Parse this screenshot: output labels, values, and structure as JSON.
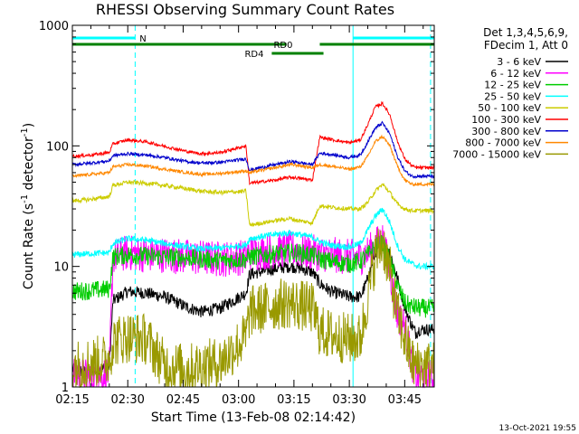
{
  "chart_data": {
    "type": "line",
    "title": "RHESSI Observing Summary Count Rates",
    "xlabel": "Start Time (13-Feb-08 02:14:42)",
    "ylabel_main": "Count Rate (s",
    "ylabel_sup1": "-1",
    "ylabel_mid": " detector",
    "ylabel_sup2": "-1",
    "ylabel_end": ")",
    "yscale": "log",
    "ylim": [
      1,
      1000
    ],
    "xlim_minutes": [
      135,
      233
    ],
    "x_ticks": [
      {
        "t": 135,
        "label": "02:15"
      },
      {
        "t": 150,
        "label": "02:30"
      },
      {
        "t": 165,
        "label": "02:45"
      },
      {
        "t": 180,
        "label": "03:00"
      },
      {
        "t": 195,
        "label": "03:15"
      },
      {
        "t": 210,
        "label": "03:30"
      },
      {
        "t": 225,
        "label": "03:45"
      }
    ],
    "y_ticks": [
      {
        "v": 1,
        "label": "1"
      },
      {
        "v": 10,
        "label": "10"
      },
      {
        "v": 100,
        "label": "100"
      },
      {
        "v": 1000,
        "label": "1000"
      }
    ],
    "legend_header": [
      "Det 1,3,4,5,6,9,",
      "FDecim 1, Att 0"
    ],
    "legend_placement": "right",
    "series": [
      {
        "name": "3 - 6 keV",
        "color": "#000000",
        "x": [
          135,
          140,
          145,
          146,
          150,
          155,
          160,
          166,
          170,
          175,
          182,
          183,
          190,
          194,
          196,
          200,
          202,
          205,
          210,
          213,
          215,
          217,
          219,
          221,
          223,
          225,
          227,
          228,
          229,
          230,
          232
        ],
        "y": [
          1.4,
          1.3,
          1.5,
          5.2,
          6.2,
          6.0,
          5.6,
          4.6,
          4.2,
          4.5,
          6.0,
          8.6,
          9.6,
          10.0,
          9.8,
          9.0,
          7.2,
          6.2,
          5.6,
          5.6,
          7.8,
          13,
          17,
          13,
          8.0,
          4.6,
          3.2,
          2.8,
          3.0,
          3.0,
          3.0
        ]
      },
      {
        "name": "6 - 12 keV",
        "color": "#ff00ff",
        "x": [
          135,
          140,
          145,
          146,
          150,
          155,
          160,
          166,
          170,
          175,
          182,
          183,
          190,
          194,
          196,
          200,
          202,
          205,
          210,
          213,
          215,
          217,
          219,
          221,
          223,
          225,
          227,
          228,
          229,
          230,
          232
        ],
        "y": [
          1.3,
          1.2,
          1.3,
          12,
          13,
          12.5,
          12.5,
          12,
          11.8,
          11.5,
          12,
          13,
          13.5,
          14,
          13.5,
          13,
          12.8,
          12.5,
          12,
          12,
          13,
          15,
          17,
          9,
          4,
          3.2,
          1.6,
          1.2,
          1.2,
          1.2,
          1.2
        ]
      },
      {
        "name": "12 - 25 keV",
        "color": "#00cc00",
        "x": [
          135,
          140,
          145,
          146,
          150,
          155,
          160,
          166,
          170,
          175,
          182,
          183,
          190,
          194,
          196,
          200,
          202,
          205,
          210,
          213,
          215,
          217,
          219,
          221,
          223,
          225,
          227,
          228,
          229,
          230,
          232
        ],
        "y": [
          6.2,
          6.3,
          6.5,
          12,
          12.5,
          12.2,
          12,
          11.8,
          11.5,
          11.2,
          11.5,
          12,
          12.8,
          13,
          13,
          12.5,
          11.5,
          11,
          10.5,
          11,
          12.5,
          14.5,
          15.5,
          11,
          7,
          5,
          4.6,
          4.6,
          4.5,
          4.5,
          4.5
        ]
      },
      {
        "name": "25 - 50 keV",
        "color": "#00ffff",
        "x": [
          135,
          140,
          145,
          146,
          150,
          155,
          160,
          166,
          170,
          175,
          182,
          183,
          190,
          194,
          196,
          200,
          202,
          205,
          210,
          213,
          215,
          217,
          219,
          221,
          223,
          225,
          227,
          228,
          229,
          230,
          232
        ],
        "y": [
          12.5,
          12.8,
          13,
          15.5,
          17,
          16.5,
          15.5,
          14.5,
          14,
          14.2,
          15,
          17,
          18.5,
          19,
          18.5,
          17.5,
          16,
          15,
          14.5,
          15.5,
          20,
          26,
          30,
          23,
          15,
          11.5,
          10.5,
          10.2,
          10,
          10,
          10
        ]
      },
      {
        "name": "50 - 100 keV",
        "color": "#cccc00",
        "x": [
          135,
          140,
          145,
          146,
          150,
          155,
          160,
          166,
          170,
          175,
          182,
          183,
          190,
          194,
          196,
          200,
          202,
          205,
          210,
          213,
          215,
          217,
          219,
          221,
          223,
          225,
          227,
          228,
          229,
          230,
          232
        ],
        "y": [
          35,
          36,
          38,
          47,
          50,
          49,
          47,
          44,
          42,
          41,
          42,
          22,
          24,
          25,
          24,
          23,
          32,
          31,
          30,
          30,
          34,
          42,
          48,
          41,
          33,
          30,
          29,
          29,
          29,
          29,
          29
        ]
      },
      {
        "name": "100 - 300 keV",
        "color": "#ff0000",
        "x": [
          135,
          140,
          145,
          146,
          150,
          155,
          160,
          166,
          170,
          175,
          182,
          183,
          190,
          194,
          196,
          200,
          202,
          205,
          210,
          213,
          215,
          217,
          219,
          221,
          223,
          225,
          227,
          228,
          229,
          230,
          232
        ],
        "y": [
          82,
          84,
          88,
          104,
          112,
          108,
          99,
          90,
          86,
          88,
          100,
          49,
          52,
          55,
          54,
          52,
          118,
          113,
          106,
          112,
          150,
          210,
          225,
          180,
          110,
          78,
          68,
          66,
          66,
          66,
          66
        ]
      },
      {
        "name": "300 - 800 keV",
        "color": "#0000cc",
        "x": [
          135,
          140,
          145,
          146,
          150,
          155,
          160,
          166,
          170,
          175,
          182,
          183,
          190,
          194,
          196,
          200,
          202,
          205,
          210,
          213,
          215,
          217,
          219,
          221,
          223,
          225,
          227,
          228,
          229,
          230,
          232
        ],
        "y": [
          70,
          72,
          75,
          83,
          86,
          84,
          80,
          74,
          72,
          73,
          78,
          63,
          70,
          74,
          73,
          70,
          87,
          85,
          80,
          84,
          108,
          140,
          155,
          125,
          82,
          62,
          56,
          56,
          56,
          56,
          56
        ]
      },
      {
        "name": "800 - 7000 keV",
        "color": "#ff8800",
        "x": [
          135,
          140,
          145,
          146,
          150,
          155,
          160,
          166,
          170,
          175,
          182,
          183,
          190,
          194,
          196,
          200,
          202,
          205,
          210,
          213,
          215,
          217,
          219,
          221,
          223,
          225,
          227,
          228,
          229,
          230,
          232
        ],
        "y": [
          56,
          58,
          60,
          67,
          70,
          68,
          64,
          60,
          58,
          59,
          62,
          60,
          66,
          70,
          69,
          66,
          70,
          68,
          64,
          67,
          82,
          108,
          120,
          100,
          68,
          52,
          48,
          48,
          48,
          48,
          48
        ]
      },
      {
        "name": "7000 - 15000 keV",
        "color": "#999900",
        "x": [
          135,
          140,
          145,
          146,
          150,
          155,
          160,
          166,
          170,
          175,
          182,
          183,
          190,
          194,
          196,
          200,
          202,
          205,
          210,
          213,
          215,
          217,
          219,
          221,
          223,
          225,
          227,
          228,
          229,
          230,
          232
        ],
        "y": [
          1.5,
          1.6,
          1.7,
          2.4,
          2.6,
          2.5,
          1.5,
          1.4,
          1.5,
          1.6,
          2.6,
          4.2,
          4.8,
          5.0,
          4.8,
          4.5,
          2.9,
          2.7,
          2.5,
          2.5,
          5.5,
          12,
          16,
          9,
          4,
          2.5,
          1.6,
          1.5,
          1.5,
          1.5,
          1.5
        ]
      }
    ],
    "flags": [
      {
        "label": "N",
        "color": "#00ffff",
        "segments": [
          [
            135,
            152
          ],
          [
            211,
            233
          ]
        ]
      },
      {
        "label": "RD0",
        "color": "#008000",
        "segments": [
          [
            135,
            193
          ],
          [
            202,
            233
          ]
        ]
      },
      {
        "label": "RD4",
        "color": "#008000",
        "segments": [
          [
            189,
            203
          ]
        ]
      }
    ],
    "markers": [
      {
        "t": 152,
        "color": "#00ffff",
        "style": "dashed"
      },
      {
        "t": 211,
        "color": "#00ffff",
        "style": "solid"
      },
      {
        "t": 232,
        "color": "#00ffff",
        "style": "dashed"
      }
    ],
    "footer_date": "13-Oct-2021 19:55"
  }
}
